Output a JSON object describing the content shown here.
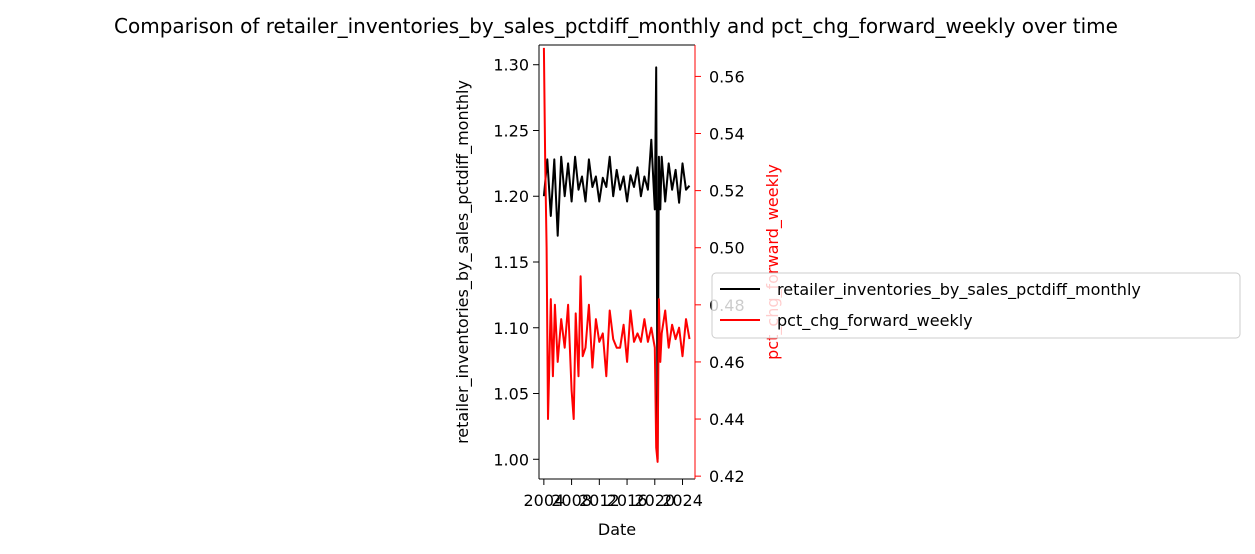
{
  "chart_data": {
    "type": "line",
    "title": "Comparison of retailer_inventories_by_sales_pctdiff_monthly and pct_chg_forward_weekly over time",
    "xlabel": "Date",
    "ylabel_left": "retailer_inventories_by_sales_pctdiff_monthly",
    "ylabel_right": "pct_chg_forward_weekly",
    "x_ticks": [
      "2004",
      "2008",
      "2012",
      "2016",
      "2020",
      "2024"
    ],
    "y_left_ticks": [
      "1.00",
      "1.05",
      "1.10",
      "1.15",
      "1.20",
      "1.25",
      "1.30"
    ],
    "y_right_ticks": [
      "0.42",
      "0.44",
      "0.46",
      "0.48",
      "0.50",
      "0.52",
      "0.54",
      "0.56"
    ],
    "xlim": [
      2003.3,
      2025.8
    ],
    "ylim_left": [
      0.985,
      1.315
    ],
    "ylim_right": [
      0.419,
      0.571
    ],
    "legend_position": "center-right (outside)",
    "series": [
      {
        "name": "retailer_inventories_by_sales_pctdiff_monthly",
        "axis": "left",
        "color": "#000000",
        "x": [
          2004.0,
          2004.5,
          2005.0,
          2005.5,
          2006.0,
          2006.5,
          2007.0,
          2007.5,
          2008.0,
          2008.5,
          2009.0,
          2009.5,
          2010.0,
          2010.5,
          2011.0,
          2011.5,
          2012.0,
          2012.5,
          2013.0,
          2013.5,
          2014.0,
          2014.5,
          2015.0,
          2015.5,
          2016.0,
          2016.5,
          2017.0,
          2017.5,
          2018.0,
          2018.5,
          2019.0,
          2019.5,
          2020.0,
          2020.2,
          2020.4,
          2020.6,
          2020.8,
          2021.0,
          2021.5,
          2022.0,
          2022.5,
          2023.0,
          2023.5,
          2024.0,
          2024.5,
          2025.0
        ],
        "y": [
          1.2,
          1.228,
          1.185,
          1.228,
          1.17,
          1.23,
          1.2,
          1.225,
          1.196,
          1.23,
          1.205,
          1.215,
          1.196,
          1.228,
          1.207,
          1.215,
          1.196,
          1.214,
          1.207,
          1.23,
          1.2,
          1.22,
          1.205,
          1.215,
          1.196,
          1.216,
          1.207,
          1.222,
          1.2,
          1.215,
          1.205,
          1.243,
          1.19,
          1.298,
          1.0,
          1.23,
          1.19,
          1.23,
          1.196,
          1.225,
          1.205,
          1.22,
          1.195,
          1.225,
          1.205,
          1.208
        ]
      },
      {
        "name": "pct_chg_forward_weekly",
        "axis": "right",
        "color": "#ff0000",
        "x": [
          2004.0,
          2004.2,
          2004.4,
          2004.6,
          2004.8,
          2005.0,
          2005.3,
          2005.6,
          2006.0,
          2006.5,
          2007.0,
          2007.5,
          2008.0,
          2008.3,
          2008.6,
          2009.0,
          2009.3,
          2009.6,
          2010.0,
          2010.5,
          2011.0,
          2011.5,
          2012.0,
          2012.5,
          2013.0,
          2013.5,
          2014.0,
          2014.5,
          2015.0,
          2015.5,
          2016.0,
          2016.5,
          2017.0,
          2017.5,
          2018.0,
          2018.5,
          2019.0,
          2019.5,
          2020.0,
          2020.2,
          2020.4,
          2020.6,
          2020.8,
          2021.0,
          2021.5,
          2022.0,
          2022.5,
          2023.0,
          2023.5,
          2024.0,
          2024.5,
          2025.0
        ],
        "y": [
          0.57,
          0.53,
          0.5,
          0.44,
          0.46,
          0.482,
          0.455,
          0.48,
          0.46,
          0.475,
          0.465,
          0.48,
          0.45,
          0.44,
          0.477,
          0.455,
          0.49,
          0.462,
          0.465,
          0.48,
          0.458,
          0.475,
          0.467,
          0.47,
          0.455,
          0.478,
          0.468,
          0.465,
          0.465,
          0.473,
          0.46,
          0.478,
          0.467,
          0.47,
          0.467,
          0.475,
          0.467,
          0.472,
          0.465,
          0.43,
          0.425,
          0.482,
          0.46,
          0.47,
          0.478,
          0.465,
          0.473,
          0.468,
          0.472,
          0.462,
          0.475,
          0.468
        ]
      }
    ]
  }
}
